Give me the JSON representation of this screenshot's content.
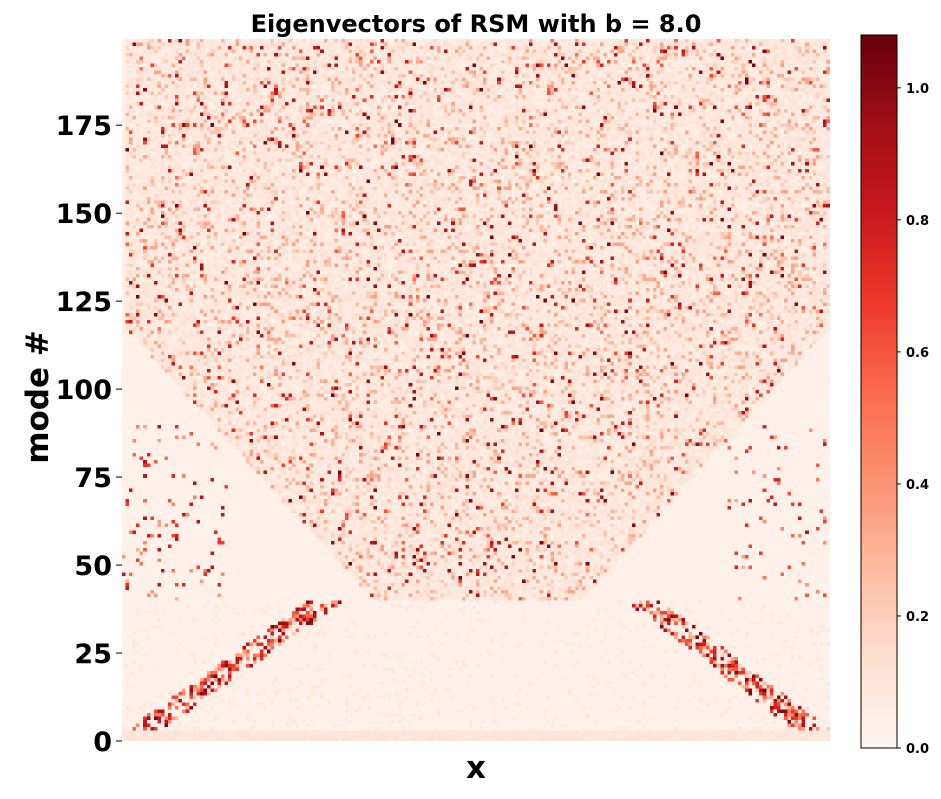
{
  "chart_data": {
    "type": "heatmap",
    "title": "Eigenvectors of RSM with b = 8.0",
    "xlabel": "x",
    "ylabel": "mode #",
    "x_range": [
      0,
      200
    ],
    "y_range": [
      0,
      199
    ],
    "rows": 200,
    "cols": 200,
    "y_ticks": [
      0,
      25,
      50,
      75,
      100,
      125,
      150,
      175
    ],
    "y_tick_labels": [
      "0",
      "25",
      "50",
      "75",
      "100",
      "125",
      "150",
      "175"
    ],
    "colormap": "Reds",
    "colorbar": {
      "range": [
        0.0,
        1.08
      ],
      "ticks": [
        0.0,
        0.2,
        0.4,
        0.6,
        0.8,
        1.0
      ],
      "tick_labels": [
        "0.0",
        "0.2",
        "0.4",
        "0.6",
        "0.8",
        "1.0"
      ]
    },
    "colors": {
      "low": "#fff5f0",
      "mid": "#fc8d6d",
      "high": "#67000d"
    },
    "pattern": {
      "description_of_values": "Bell-shaped band of localized modes: mode 0 near x≈100 spans the middle; low modes are localized near both edges, higher modes spread toward center",
      "typical_background": 0.03,
      "peak_value": 1.05
    }
  }
}
